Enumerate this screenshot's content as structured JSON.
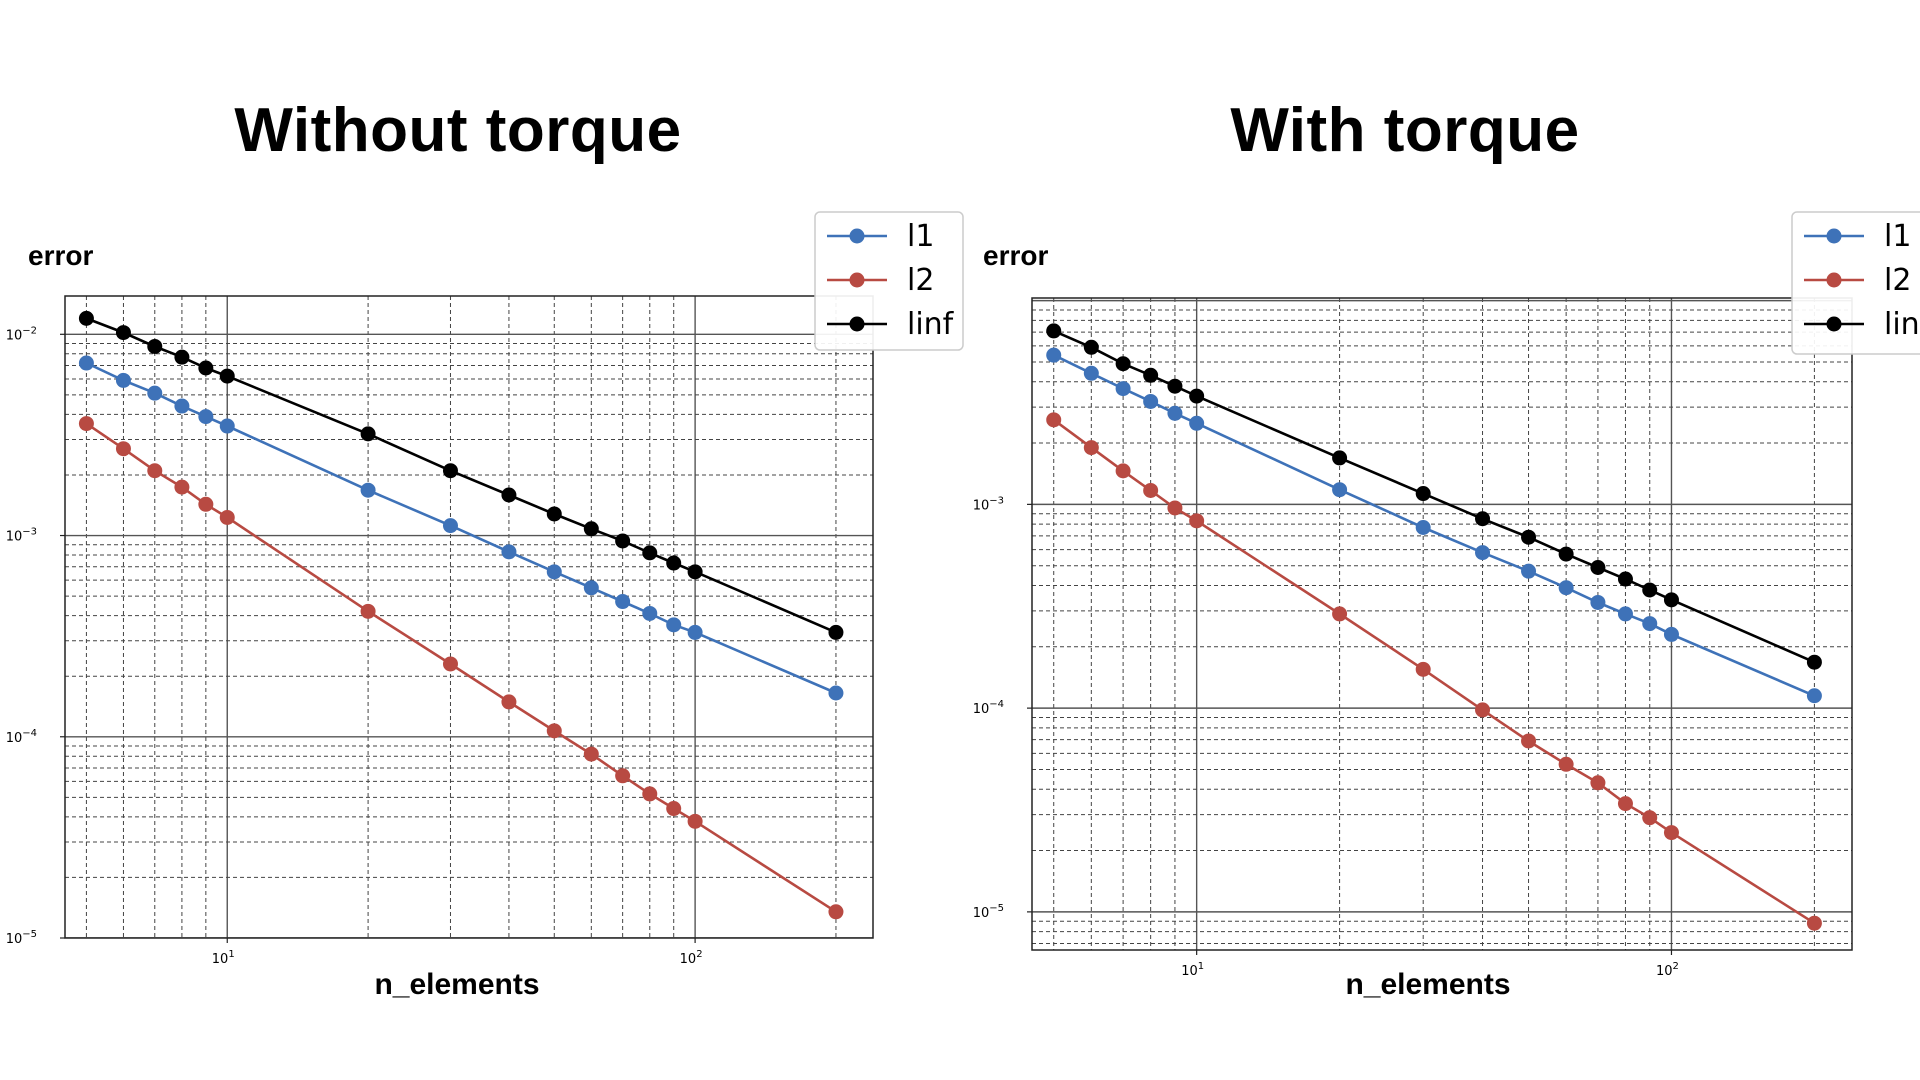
{
  "colors": {
    "l1": "#3e72b8",
    "l2": "#b84a42",
    "linf": "#000000"
  },
  "chart_data": [
    {
      "type": "line",
      "title": "Without torque",
      "xlabel": "n_elements",
      "ylabel": "error",
      "xscale": "log",
      "yscale": "log",
      "xlim": [
        4.5,
        240
      ],
      "ylim": [
        1e-05,
        0.0155
      ],
      "grid": "both (major solid, minor dashed)",
      "legend": "top-right",
      "x": [
        5,
        6,
        7,
        8,
        9,
        10,
        20,
        30,
        40,
        50,
        60,
        70,
        80,
        90,
        100,
        200
      ],
      "x_ticks": [
        {
          "value": 10,
          "label": "10",
          "exp": "1"
        },
        {
          "value": 100,
          "label": "10",
          "exp": "2"
        }
      ],
      "y_ticks": [
        {
          "value": 1e-05,
          "label": "10",
          "exp": "−5"
        },
        {
          "value": 0.0001,
          "label": "10",
          "exp": "−4"
        },
        {
          "value": 0.001,
          "label": "10",
          "exp": "−3"
        },
        {
          "value": 0.01,
          "label": "10",
          "exp": "−2"
        }
      ],
      "series": [
        {
          "name": "l1",
          "color": "#3e72b8",
          "values": [
            0.0072,
            0.0059,
            0.0051,
            0.0044,
            0.0039,
            0.0035,
            0.00168,
            0.00112,
            0.00083,
            0.00066,
            0.00055,
            0.00047,
            0.00041,
            0.00036,
            0.00033,
            0.000165
          ]
        },
        {
          "name": "l2",
          "color": "#b84a42",
          "values": [
            0.0036,
            0.0027,
            0.0021,
            0.00174,
            0.00143,
            0.00123,
            0.00042,
            0.00023,
            0.000149,
            0.000107,
            8.2e-05,
            6.4e-05,
            5.2e-05,
            4.4e-05,
            3.8e-05,
            1.35e-05
          ]
        },
        {
          "name": "linf",
          "color": "#000000",
          "values": [
            0.012,
            0.0102,
            0.0087,
            0.0077,
            0.0068,
            0.0062,
            0.0032,
            0.0021,
            0.00159,
            0.00128,
            0.00108,
            0.00094,
            0.00082,
            0.00073,
            0.00066,
            0.00033
          ]
        }
      ]
    },
    {
      "type": "line",
      "title": "With torque",
      "xlabel": "n_elements",
      "ylabel": "error",
      "xscale": "log",
      "yscale": "log",
      "xlim": [
        4.5,
        240
      ],
      "ylim": [
        6.5e-06,
        0.0103
      ],
      "grid": "both (major solid, minor dashed)",
      "legend": "top-right",
      "x": [
        5,
        6,
        7,
        8,
        9,
        10,
        20,
        30,
        40,
        50,
        60,
        70,
        80,
        90,
        100,
        200
      ],
      "x_ticks": [
        {
          "value": 10,
          "label": "10",
          "exp": "1"
        },
        {
          "value": 100,
          "label": "10",
          "exp": "2"
        }
      ],
      "y_ticks": [
        {
          "value": 1e-05,
          "label": "10",
          "exp": "−5"
        },
        {
          "value": 0.0001,
          "label": "10",
          "exp": "−4"
        },
        {
          "value": 0.001,
          "label": "10",
          "exp": "−3"
        }
      ],
      "series": [
        {
          "name": "l1",
          "color": "#3e72b8",
          "values": [
            0.0054,
            0.0044,
            0.0037,
            0.0032,
            0.0028,
            0.0025,
            0.00118,
            0.00077,
            0.00058,
            0.00047,
            0.00039,
            0.00033,
            0.00029,
            0.00026,
            0.00023,
            0.000115
          ]
        },
        {
          "name": "l2",
          "color": "#b84a42",
          "values": [
            0.0026,
            0.0019,
            0.00146,
            0.00117,
            0.00096,
            0.00083,
            0.00029,
            0.000155,
            9.8e-05,
            6.9e-05,
            5.3e-05,
            4.3e-05,
            3.4e-05,
            2.9e-05,
            2.45e-05,
            8.8e-06
          ]
        },
        {
          "name": "linf",
          "color": "#000000",
          "values": [
            0.0071,
            0.0059,
            0.0049,
            0.0043,
            0.0038,
            0.0034,
            0.00169,
            0.00113,
            0.00085,
            0.00069,
            0.00057,
            0.00049,
            0.00043,
            0.00038,
            0.00034,
            0.000168
          ]
        }
      ]
    }
  ]
}
